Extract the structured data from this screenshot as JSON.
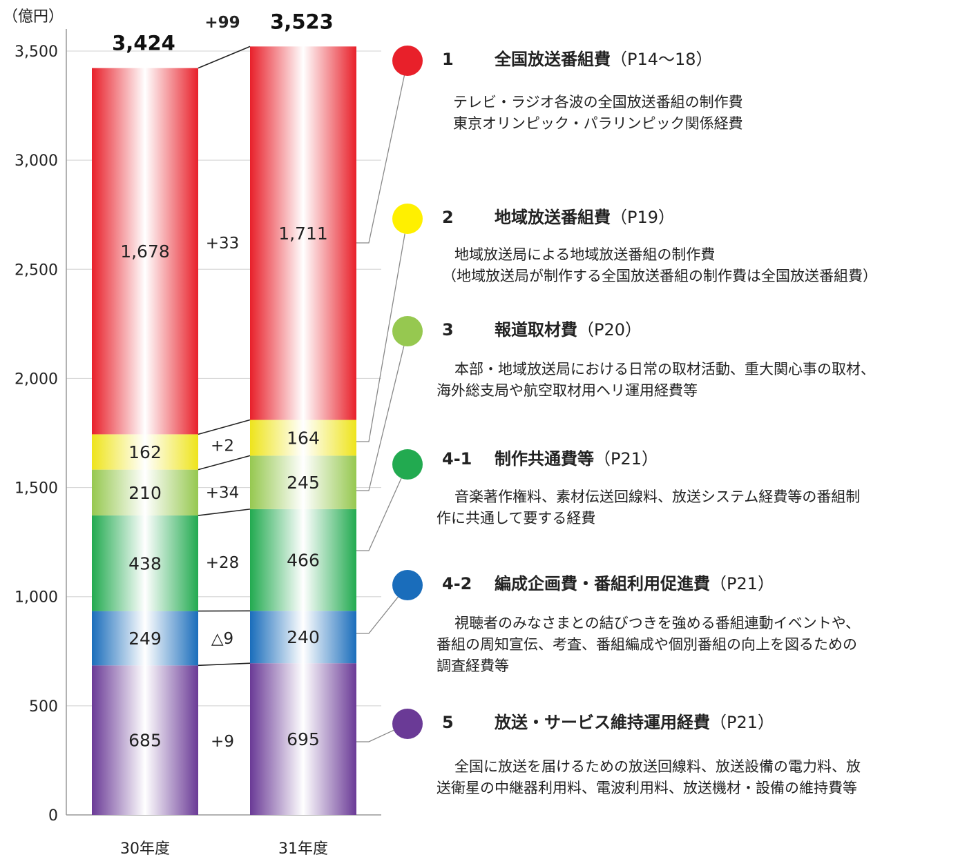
{
  "chart_data": {
    "type": "bar",
    "stacked": true,
    "unit": "（億円）",
    "categories": [
      "30年度",
      "31年度"
    ],
    "totals": [
      "3,424",
      "3,523"
    ],
    "total_diff": "+99",
    "ylim": [
      0,
      3500
    ],
    "yticks": [
      {
        "value": 0,
        "label": "0"
      },
      {
        "value": 500,
        "label": "500"
      },
      {
        "value": 1000,
        "label": "1,000"
      },
      {
        "value": 1500,
        "label": "1,500"
      },
      {
        "value": 2000,
        "label": "2,000"
      },
      {
        "value": 2500,
        "label": "2,500"
      },
      {
        "value": 3000,
        "label": "3,000"
      },
      {
        "value": 3500,
        "label": "3,500"
      }
    ],
    "grid": true,
    "series": [
      {
        "name": "5",
        "color": "#6a3a96",
        "values": [
          685,
          695
        ],
        "labels": [
          "685",
          "695"
        ],
        "diff": "+9"
      },
      {
        "name": "4-2",
        "color": "#1a6dbb",
        "values": [
          249,
          240
        ],
        "labels": [
          "249",
          "240"
        ],
        "diff": "△9"
      },
      {
        "name": "4-1",
        "color": "#22aa50",
        "values": [
          438,
          466
        ],
        "labels": [
          "438",
          "466"
        ],
        "diff": "+28"
      },
      {
        "name": "3",
        "color": "#96c850",
        "values": [
          210,
          245
        ],
        "labels": [
          "210",
          "245"
        ],
        "diff": "+34"
      },
      {
        "name": "2",
        "color": "#eee41c",
        "values": [
          162,
          164
        ],
        "labels": [
          "162",
          "164"
        ],
        "diff": "+2"
      },
      {
        "name": "1",
        "color": "#e8202a",
        "values": [
          1678,
          1711
        ],
        "labels": [
          "1,678",
          "1,711"
        ],
        "diff": "+33"
      }
    ]
  },
  "legend": [
    {
      "no": "1",
      "title": "全国放送番組費",
      "page": "（P14～18）",
      "color": "#e8202a",
      "desc": [
        "テレビ・ラジオ各波の全国放送番組の制作費",
        "東京オリンピック・パラリンピック関係経費"
      ]
    },
    {
      "no": "2",
      "title": "地域放送番組費",
      "page": "（P19）",
      "color": "#fff000",
      "desc": [
        "地域放送局による地域放送番組の制作費",
        "（地域放送局が制作する全国放送番組の制作費は全国放送番組費）"
      ]
    },
    {
      "no": "3",
      "title": "報道取材費",
      "page": "（P20）",
      "color": "#96c850",
      "desc": [
        "本部・地域放送局における日常の取材活動、重大関心事の取材、",
        "海外総支局や航空取材用ヘリ運用経費等"
      ]
    },
    {
      "no": "4-1",
      "title": "制作共通費等",
      "page": "（P21）",
      "color": "#22aa50",
      "desc": [
        "音楽著作権料、素材伝送回線料、放送システム経費等の番組制",
        "作に共通して要する経費"
      ]
    },
    {
      "no": "4-2",
      "title": "編成企画費・番組利用促進費",
      "page": "（P21）",
      "color": "#1a6dbb",
      "desc": [
        "視聴者のみなさまとの結びつきを強める番組連動イベントや、",
        "番組の周知宣伝、考査、番組編成や個別番組の向上を図るための",
        "調査経費等"
      ]
    },
    {
      "no": "5",
      "title": "放送・サービス維持運用経費",
      "page": "（P21）",
      "color": "#6a3a96",
      "desc": [
        "全国に放送を届けるための放送回線料、放送設備の電力料、放",
        "送衛星の中継器利用料、電波利用料、放送機材・設備の維持費等"
      ]
    }
  ]
}
